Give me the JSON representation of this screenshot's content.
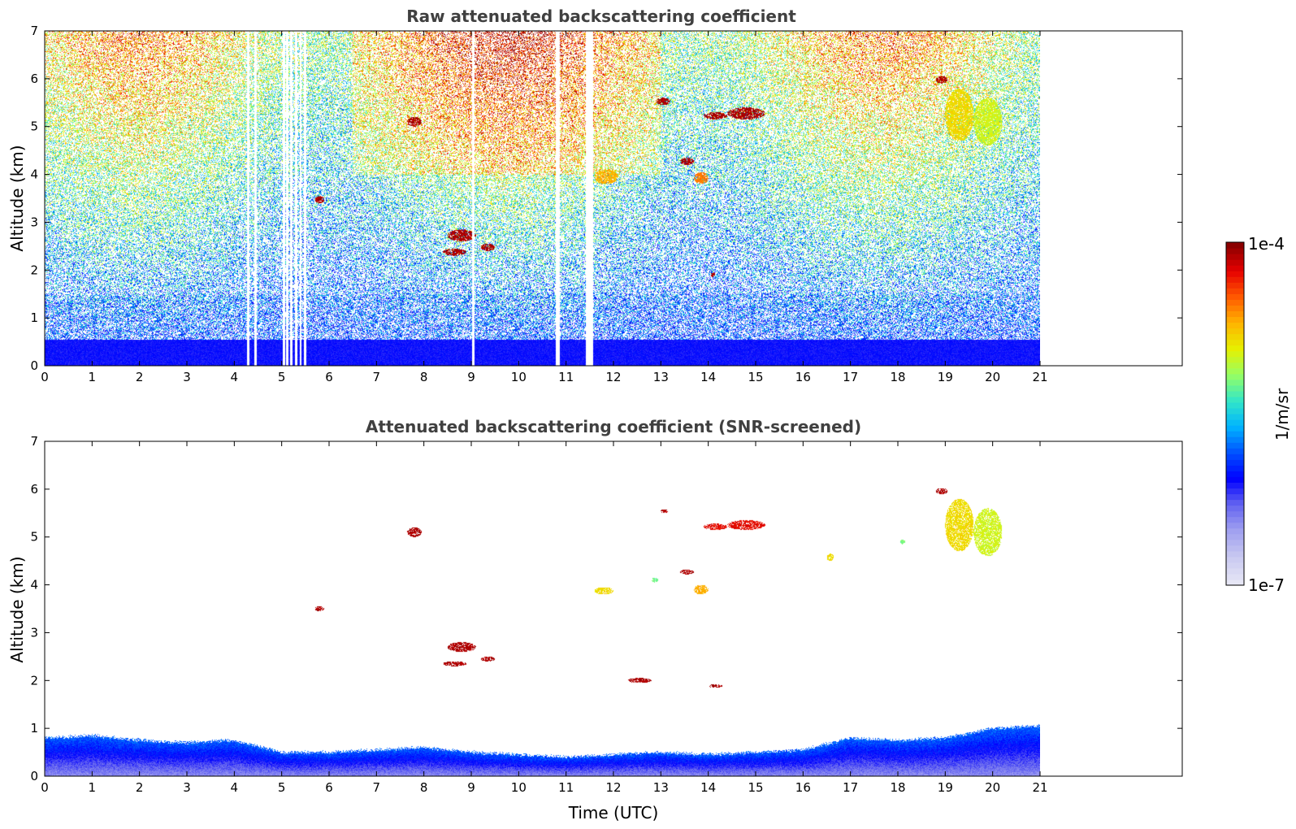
{
  "chart_data": [
    {
      "type": "heatmap",
      "title": "Raw attenuated backscattering coefficient",
      "xlabel": "",
      "ylabel": "Altitude (km)",
      "xlim": [
        0,
        24
      ],
      "ylim": [
        0,
        7
      ],
      "xticks": [
        "0",
        "1",
        "2",
        "3",
        "4",
        "5",
        "6",
        "7",
        "8",
        "9",
        "10",
        "11",
        "12",
        "13",
        "14",
        "15",
        "16",
        "17",
        "18",
        "19",
        "20",
        "21"
      ],
      "yticks": [
        "0",
        "1",
        "2",
        "3",
        "4",
        "5",
        "6",
        "7"
      ],
      "data_extent_hours": [
        0,
        21
      ],
      "gap_times_hours": [
        4.3,
        4.45,
        5.05,
        5.12,
        5.2,
        5.3,
        5.4,
        5.5,
        9.05,
        10.8,
        10.85,
        11.45,
        11.5,
        11.55
      ],
      "features": [
        {
          "x": [
            7.65,
            7.95
          ],
          "y": [
            5.0,
            5.2
          ],
          "level": 1.0
        },
        {
          "x": [
            5.7,
            5.9
          ],
          "y": [
            3.4,
            3.55
          ],
          "level": 1.0
        },
        {
          "x": [
            8.5,
            9.1
          ],
          "y": [
            2.6,
            2.85
          ],
          "level": 1.0
        },
        {
          "x": [
            8.4,
            8.9
          ],
          "y": [
            2.3,
            2.45
          ],
          "level": 1.0
        },
        {
          "x": [
            9.2,
            9.5
          ],
          "y": [
            2.4,
            2.55
          ],
          "level": 1.0
        },
        {
          "x": [
            12.9,
            13.2
          ],
          "y": [
            5.45,
            5.6
          ],
          "level": 1.0
        },
        {
          "x": [
            13.9,
            14.4
          ],
          "y": [
            5.15,
            5.3
          ],
          "level": 1.0
        },
        {
          "x": [
            14.4,
            15.2
          ],
          "y": [
            5.15,
            5.4
          ],
          "level": 1.0
        },
        {
          "x": [
            13.4,
            13.7
          ],
          "y": [
            4.2,
            4.35
          ],
          "level": 1.0
        },
        {
          "x": [
            13.7,
            14.0
          ],
          "y": [
            3.8,
            4.05
          ],
          "level": 0.85
        },
        {
          "x": [
            11.6,
            12.1
          ],
          "y": [
            3.8,
            4.1
          ],
          "level": 0.8
        },
        {
          "x": [
            18.8,
            19.05
          ],
          "y": [
            5.9,
            6.05
          ],
          "level": 1.0
        },
        {
          "x": [
            19.0,
            19.6
          ],
          "y": [
            4.7,
            5.8
          ],
          "level": 0.75
        },
        {
          "x": [
            19.6,
            20.2
          ],
          "y": [
            4.6,
            5.6
          ],
          "level": 0.7
        },
        {
          "x": [
            14.05,
            14.15
          ],
          "y": [
            1.85,
            1.95
          ],
          "level": 1.0
        }
      ]
    },
    {
      "type": "heatmap",
      "title": "Attenuated backscattering coefficient (SNR-screened)",
      "xlabel": "Time (UTC)",
      "ylabel": "Altitude (km)",
      "xlim": [
        0,
        24
      ],
      "ylim": [
        0,
        7
      ],
      "xticks": [
        "0",
        "1",
        "2",
        "3",
        "4",
        "5",
        "6",
        "7",
        "8",
        "9",
        "10",
        "11",
        "12",
        "13",
        "14",
        "15",
        "16",
        "17",
        "18",
        "19",
        "20",
        "21"
      ],
      "yticks": [
        "0",
        "1",
        "2",
        "3",
        "4",
        "5",
        "6",
        "7"
      ],
      "data_extent_hours": [
        0,
        21
      ],
      "boundary_layer_top_km": [
        [
          0,
          0.8
        ],
        [
          1,
          0.85
        ],
        [
          2,
          0.75
        ],
        [
          3,
          0.7
        ],
        [
          4,
          0.75
        ],
        [
          5,
          0.5
        ],
        [
          6,
          0.5
        ],
        [
          7,
          0.55
        ],
        [
          8,
          0.6
        ],
        [
          9,
          0.5
        ],
        [
          10,
          0.45
        ],
        [
          11,
          0.4
        ],
        [
          12,
          0.45
        ],
        [
          13,
          0.5
        ],
        [
          14,
          0.45
        ],
        [
          15,
          0.5
        ],
        [
          16,
          0.55
        ],
        [
          17,
          0.8
        ],
        [
          18,
          0.75
        ],
        [
          19,
          0.8
        ],
        [
          20,
          1.0
        ],
        [
          21,
          1.05
        ]
      ],
      "features": [
        {
          "x": [
            7.65,
            7.95
          ],
          "y": [
            5.0,
            5.2
          ],
          "level": 1.0
        },
        {
          "x": [
            5.7,
            5.9
          ],
          "y": [
            3.45,
            3.55
          ],
          "level": 1.0
        },
        {
          "x": [
            8.5,
            9.1
          ],
          "y": [
            2.6,
            2.8
          ],
          "level": 1.0
        },
        {
          "x": [
            8.4,
            8.9
          ],
          "y": [
            2.3,
            2.4
          ],
          "level": 1.0
        },
        {
          "x": [
            9.2,
            9.5
          ],
          "y": [
            2.4,
            2.5
          ],
          "level": 1.0
        },
        {
          "x": [
            13.0,
            13.15
          ],
          "y": [
            5.5,
            5.58
          ],
          "level": 1.0
        },
        {
          "x": [
            13.9,
            14.4
          ],
          "y": [
            5.15,
            5.28
          ],
          "level": 0.95
        },
        {
          "x": [
            14.4,
            15.2
          ],
          "y": [
            5.15,
            5.35
          ],
          "level": 0.95
        },
        {
          "x": [
            13.4,
            13.7
          ],
          "y": [
            4.22,
            4.32
          ],
          "level": 1.0
        },
        {
          "x": [
            13.7,
            14.0
          ],
          "y": [
            3.8,
            4.0
          ],
          "level": 0.8
        },
        {
          "x": [
            11.6,
            12.0
          ],
          "y": [
            3.8,
            3.95
          ],
          "level": 0.75
        },
        {
          "x": [
            12.3,
            12.8
          ],
          "y": [
            1.95,
            2.05
          ],
          "level": 1.0
        },
        {
          "x": [
            14.0,
            14.3
          ],
          "y": [
            1.85,
            1.92
          ],
          "level": 1.0
        },
        {
          "x": [
            18.8,
            19.05
          ],
          "y": [
            5.9,
            6.02
          ],
          "level": 1.0
        },
        {
          "x": [
            19.0,
            19.6
          ],
          "y": [
            4.7,
            5.8
          ],
          "level": 0.75
        },
        {
          "x": [
            19.6,
            20.2
          ],
          "y": [
            4.6,
            5.6
          ],
          "level": 0.7
        },
        {
          "x": [
            16.5,
            16.65
          ],
          "y": [
            4.5,
            4.65
          ],
          "level": 0.75
        },
        {
          "x": [
            18.05,
            18.15
          ],
          "y": [
            4.85,
            4.95
          ],
          "level": 0.62
        },
        {
          "x": [
            12.8,
            12.95
          ],
          "y": [
            4.05,
            4.15
          ],
          "level": 0.62
        }
      ]
    }
  ],
  "colorbar": {
    "label": "1/m/sr",
    "max_label": "1e-4",
    "min_label": "1e-7",
    "colors": [
      "#e6e6f5",
      "#c8c8f0",
      "#a0a0f0",
      "#6464f0",
      "#0000ff",
      "#0050ff",
      "#00b4ff",
      "#32e6c8",
      "#96ff64",
      "#e6f000",
      "#ffb400",
      "#ff5a00",
      "#e60000",
      "#8b0000"
    ]
  }
}
